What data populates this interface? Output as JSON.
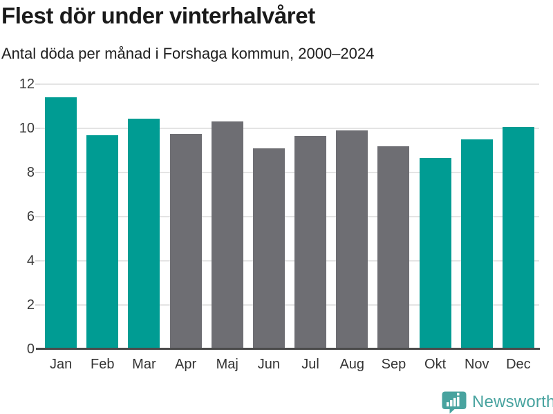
{
  "header": {
    "title": "Flest dör under vinterhalvåret",
    "subtitle": "Antal döda per månad i Forshaga kommun, 2000–2024"
  },
  "chart_data": {
    "type": "bar",
    "title": "Flest dör under vinterhalvåret",
    "subtitle": "Antal döda per månad i Forshaga kommun, 2000–2024",
    "categories": [
      "Jan",
      "Feb",
      "Mar",
      "Apr",
      "Maj",
      "Jun",
      "Jul",
      "Aug",
      "Sep",
      "Okt",
      "Nov",
      "Dec"
    ],
    "values": [
      11.4,
      9.7,
      10.45,
      9.75,
      10.3,
      9.1,
      9.65,
      9.9,
      9.2,
      8.65,
      9.5,
      10.05
    ],
    "bar_groups": [
      "winter",
      "winter",
      "winter",
      "summer",
      "summer",
      "summer",
      "summer",
      "summer",
      "summer",
      "winter",
      "winter",
      "winter"
    ],
    "colors": {
      "winter": "#009c93",
      "summer": "#6e6e73"
    },
    "xlabel": "",
    "ylabel": "",
    "ylim": [
      0,
      12
    ],
    "yticks": [
      0,
      2,
      4,
      6,
      8,
      10,
      12
    ],
    "grid": true,
    "legend": false,
    "gridline_color": "#e4e4e4",
    "axis_color": "#4a4a4a"
  },
  "footer": {
    "brand": "Newsworthy",
    "brand_color": "#48a39f",
    "logo_icon": "newsworthy-speech-bubble-chart-icon"
  }
}
